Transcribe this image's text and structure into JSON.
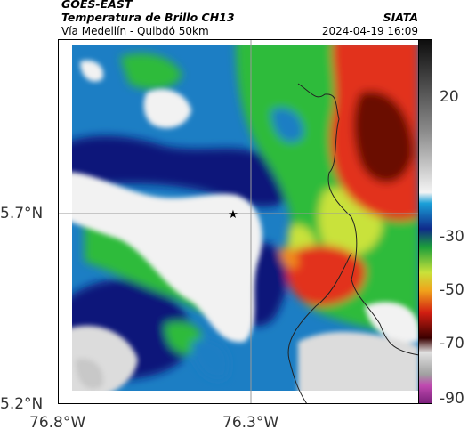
{
  "header": {
    "satellite": "GOES-EAST",
    "product": "Temperatura de Brillo CH13",
    "region": "Vía Medellín - Quibdó 50km",
    "org": "SIATA",
    "datetime": "2024-04-19 16:09"
  },
  "map": {
    "lat_ticks": [
      "5.7°N",
      "5.2°N"
    ],
    "lon_ticks": [
      "76.8°W",
      "76.3°W"
    ],
    "gridlines": true,
    "marker": "star-icon"
  },
  "colorbar": {
    "ticks": [
      "20",
      "-30",
      "-50",
      "-70",
      "-90"
    ]
  },
  "colors": {
    "white_cold": "#f2f2f2",
    "blue": "#1c7ec4",
    "navy": "#11157a",
    "green": "#2dbb3a",
    "red": "#e2301b",
    "dark_red": "#6a0a04"
  }
}
